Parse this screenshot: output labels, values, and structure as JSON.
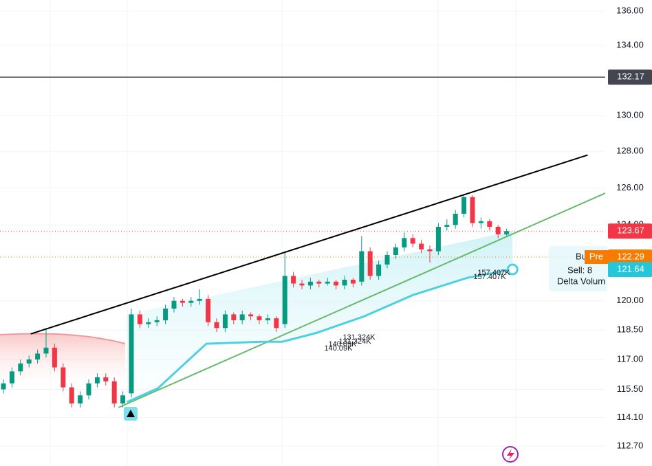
{
  "chart_data": {
    "type": "candlestick",
    "ylim": [
      111.74,
      136.65
    ],
    "log_scale": true,
    "grid": true,
    "yticks": [
      {
        "value": 136,
        "label": "136.00"
      },
      {
        "value": 134,
        "label": "134.00"
      },
      {
        "value": 130,
        "label": "130.00"
      },
      {
        "value": 128,
        "label": "128.00"
      },
      {
        "value": 126,
        "label": "126.00"
      },
      {
        "value": 124,
        "label": "124.00"
      },
      {
        "value": 120,
        "label": "120.00"
      },
      {
        "value": 118.5,
        "label": "118.50"
      },
      {
        "value": 117,
        "label": "117.00"
      },
      {
        "value": 115.5,
        "label": "115.50"
      },
      {
        "value": 114.1,
        "label": "114.10"
      },
      {
        "value": 112.7,
        "label": "112.70"
      }
    ],
    "up_color": "#089981",
    "down_color": "#f23645",
    "candles": [
      [
        115.5,
        116.0,
        115.3,
        115.8
      ],
      [
        115.8,
        116.6,
        115.6,
        116.4
      ],
      [
        116.4,
        117.0,
        116.2,
        116.8
      ],
      [
        116.8,
        117.2,
        116.6,
        117.0
      ],
      [
        117.0,
        117.5,
        116.8,
        117.3
      ],
      [
        117.3,
        118.6,
        117.1,
        117.6
      ],
      [
        117.6,
        117.8,
        116.4,
        116.6
      ],
      [
        116.6,
        116.8,
        115.4,
        115.6
      ],
      [
        115.6,
        115.8,
        114.6,
        114.8
      ],
      [
        114.8,
        115.4,
        114.6,
        115.2
      ],
      [
        115.2,
        116.0,
        115.0,
        115.8
      ],
      [
        115.8,
        116.3,
        115.6,
        116.1
      ],
      [
        116.1,
        116.3,
        115.7,
        115.9
      ],
      [
        115.9,
        116.1,
        114.6,
        114.8
      ],
      [
        114.8,
        115.4,
        114.6,
        115.2
      ],
      [
        115.3,
        119.6,
        115.1,
        119.3
      ],
      [
        119.3,
        119.5,
        118.6,
        118.8
      ],
      [
        118.8,
        119.1,
        118.6,
        118.9
      ],
      [
        118.9,
        119.2,
        118.7,
        119.0
      ],
      [
        119.0,
        119.8,
        118.8,
        119.6
      ],
      [
        119.6,
        120.2,
        119.4,
        120.0
      ],
      [
        120.0,
        120.1,
        119.7,
        119.9
      ],
      [
        119.9,
        120.2,
        119.7,
        120.0
      ],
      [
        120.0,
        120.6,
        119.8,
        120.1
      ],
      [
        120.1,
        120.3,
        118.7,
        118.9
      ],
      [
        118.9,
        119.1,
        118.4,
        118.6
      ],
      [
        118.6,
        119.5,
        118.4,
        119.3
      ],
      [
        119.3,
        119.4,
        118.8,
        119.0
      ],
      [
        119.0,
        119.5,
        118.8,
        119.3
      ],
      [
        119.3,
        119.4,
        119.0,
        119.2
      ],
      [
        119.2,
        119.3,
        118.8,
        119.0
      ],
      [
        119.0,
        119.3,
        118.8,
        119.1
      ],
      [
        119.1,
        119.2,
        118.4,
        118.6
      ],
      [
        118.8,
        122.6,
        118.6,
        121.3
      ],
      [
        121.3,
        121.5,
        120.7,
        120.9
      ],
      [
        120.9,
        121.1,
        120.6,
        120.8
      ],
      [
        120.8,
        121.2,
        120.6,
        121.0
      ],
      [
        121.0,
        121.1,
        120.7,
        120.9
      ],
      [
        120.9,
        121.2,
        120.8,
        121.0
      ],
      [
        121.0,
        121.1,
        120.6,
        120.8
      ],
      [
        120.8,
        121.3,
        120.6,
        121.1
      ],
      [
        121.1,
        121.2,
        120.7,
        120.9
      ],
      [
        121.0,
        123.4,
        120.8,
        122.6
      ],
      [
        122.6,
        122.8,
        121.1,
        121.3
      ],
      [
        121.3,
        122.1,
        121.1,
        121.9
      ],
      [
        121.9,
        122.6,
        121.7,
        122.4
      ],
      [
        122.4,
        123.0,
        122.2,
        122.8
      ],
      [
        122.8,
        123.6,
        122.6,
        123.3
      ],
      [
        123.3,
        123.5,
        122.8,
        123.0
      ],
      [
        123.0,
        123.2,
        122.5,
        122.7
      ],
      [
        122.7,
        122.9,
        122.0,
        122.6
      ],
      [
        122.6,
        124.1,
        122.4,
        123.9
      ],
      [
        123.9,
        124.3,
        123.7,
        124.0
      ],
      [
        124.0,
        124.8,
        123.8,
        124.6
      ],
      [
        124.6,
        125.6,
        124.4,
        125.5
      ],
      [
        125.5,
        125.6,
        123.9,
        124.1
      ],
      [
        124.1,
        124.4,
        123.8,
        124.2
      ],
      [
        124.2,
        124.3,
        123.7,
        123.9
      ],
      [
        123.9,
        124.0,
        123.3,
        123.5
      ],
      [
        123.5,
        123.8,
        123.4,
        123.67
      ]
    ],
    "trendlines": [
      {
        "color": "#000000",
        "x": [
          3.2,
          68.5
        ],
        "values": [
          118.3,
          127.8
        ]
      },
      {
        "color": "#66bb6a",
        "x": [
          13.5,
          71
        ],
        "values": [
          114.6,
          125.8
        ]
      }
    ],
    "moving_average": {
      "color": "#4dd0e1",
      "x": [
        14.5,
        18.1,
        23.8,
        30.2,
        32.7,
        36.7,
        42.3,
        48.0,
        54.4,
        59.7
      ],
      "values": [
        114.87,
        115.55,
        117.8,
        117.9,
        117.9,
        118.35,
        119.2,
        120.3,
        121.2,
        121.64
      ]
    },
    "horizontal_line": {
      "value": 132.17,
      "color": "#434651"
    },
    "price_tags": [
      {
        "value": 132.17,
        "color": "#434651"
      },
      {
        "value": 123.67,
        "color": "#f23645"
      },
      {
        "value": 122.29,
        "color": "#f57c00",
        "prefix": "Pre"
      },
      {
        "value": 121.64,
        "color": "#26c6da"
      }
    ],
    "annotations": [
      "157.407K",
      "131.324K",
      "140.09K"
    ],
    "info_panel": [
      "Bu",
      "Sell: 8",
      "Delta Volum"
    ]
  }
}
